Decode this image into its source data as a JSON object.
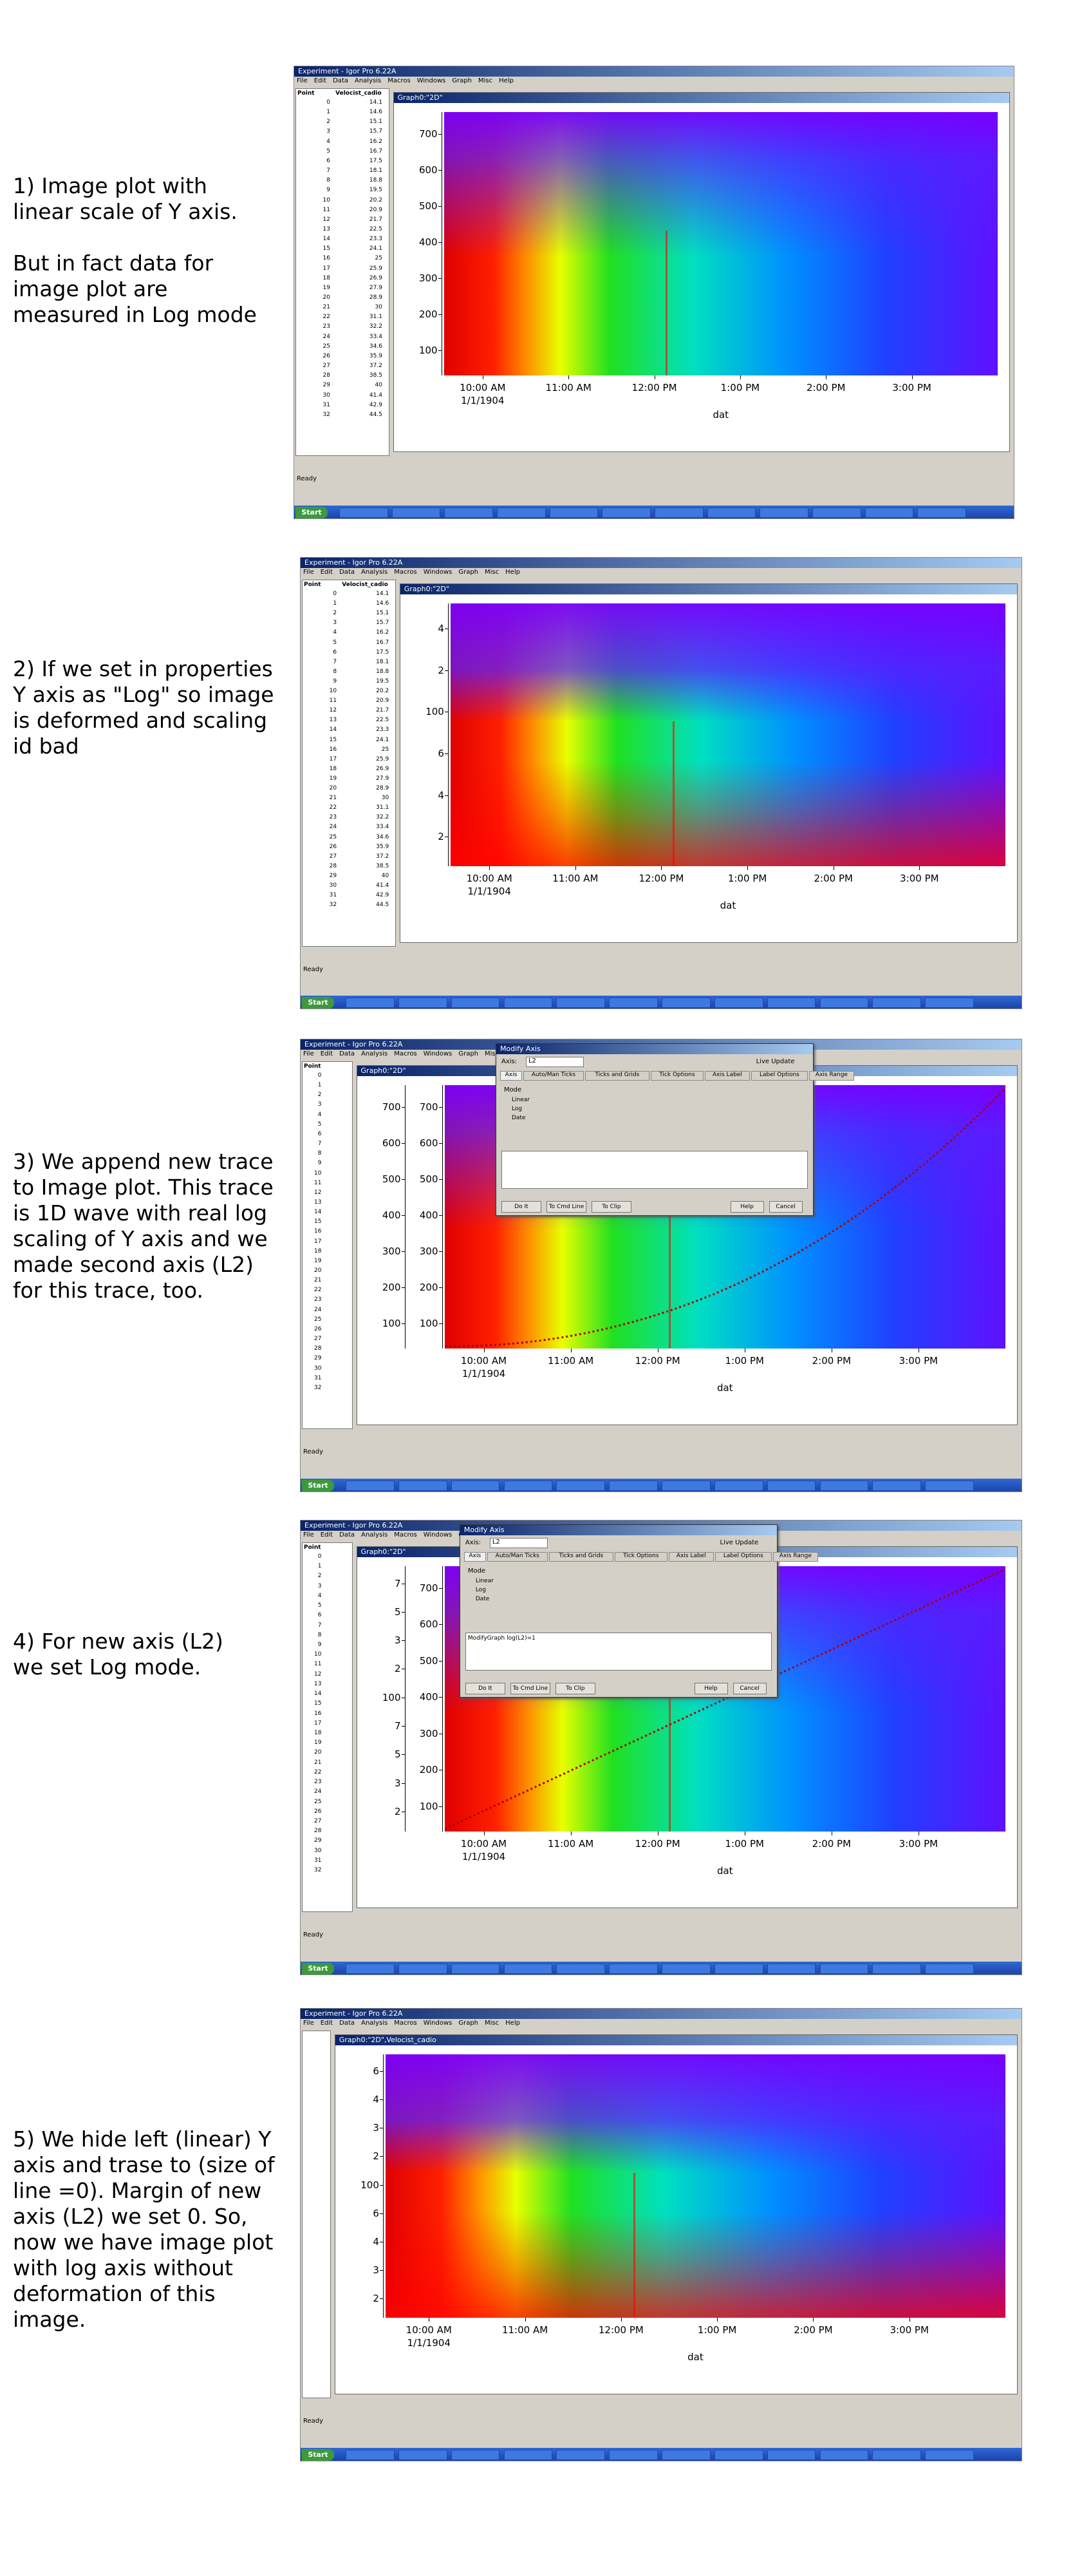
{
  "window_title": "Experiment - Igor Pro 6.22A",
  "menu": [
    "File",
    "Edit",
    "Data",
    "Analysis",
    "Macros",
    "Windows",
    "Graph",
    "Misc",
    "Help"
  ],
  "table": {
    "columns": [
      "Point",
      "Velocist_cadio"
    ],
    "points": [
      "0",
      "1",
      "2",
      "3",
      "4",
      "5",
      "6",
      "7",
      "8",
      "9",
      "10",
      "11",
      "12",
      "13",
      "14",
      "15",
      "16",
      "17",
      "18",
      "19",
      "20",
      "21",
      "22",
      "23",
      "24",
      "25",
      "26",
      "27",
      "28",
      "29",
      "30",
      "31",
      "32"
    ],
    "values": [
      "14.1",
      "14.6",
      "15.1",
      "15.7",
      "16.2",
      "16.7",
      "17.5",
      "18.1",
      "18.8",
      "19.5",
      "20.2",
      "20.9",
      "21.7",
      "22.5",
      "23.3",
      "24.1",
      "25",
      "25.9",
      "26.9",
      "27.9",
      "28.9",
      "30",
      "31.1",
      "32.2",
      "33.4",
      "34.6",
      "35.9",
      "37.2",
      "38.5",
      "40",
      "41.4",
      "42.9",
      "44.5"
    ]
  },
  "x_ticks": [
    "10:00 AM",
    "11:00 AM",
    "12:00 PM",
    "1:00 PM",
    "2:00 PM",
    "3:00 PM"
  ],
  "x_sublabel": "1/1/1904",
  "x_label": "dat",
  "taskbar": {
    "start": "Start",
    "status": "Ready"
  },
  "dialog": {
    "title": "Modify Axis",
    "axis_label": "Axis:",
    "axis": "L2",
    "live": "Live Update",
    "tabs": [
      "Axis",
      "Auto/Man Ticks",
      "Ticks and Grids",
      "Tick Options",
      "Axis Label",
      "Label Options",
      "Axis Range"
    ],
    "mode_label": "Mode",
    "modes": [
      "Linear",
      "Log",
      "Date"
    ],
    "buttons": [
      "Do It",
      "To Cmd Line",
      "To Clip",
      "Help",
      "Cancel"
    ],
    "command": "ModifyGraph log(L2)=1"
  },
  "steps": [
    {
      "caption": [
        "1) Image plot with",
        "linear scale of Y axis.",
        "",
        "But in fact data for",
        "image plot are",
        "measured in Log mode"
      ],
      "graph_title": "Graph0:\"2D\"",
      "table": true,
      "dialog": false,
      "trace": false,
      "log": false,
      "axes": [
        [
          "700",
          "600",
          "500",
          "400",
          "300",
          "200",
          "100"
        ]
      ]
    },
    {
      "caption": [
        "2) If we set in properties",
        "Y axis as \"Log\" so image",
        "is deformed and scaling",
        "id bad"
      ],
      "graph_title": "Graph0:\"2D\"",
      "table": true,
      "dialog": false,
      "trace": false,
      "log": true,
      "axes": [
        [
          "4",
          "2",
          "100",
          "6",
          "4",
          "2"
        ]
      ]
    },
    {
      "caption": [
        "3) We append new trace",
        "to Image plot. This trace",
        "is 1D wave with real log",
        "scaling of Y axis and we",
        "made second axis (L2)",
        "for this trace, too."
      ],
      "graph_title": "Graph0:\"2D\"",
      "table": true,
      "dialog": true,
      "trace": true,
      "log": false,
      "axes": [
        [
          "700",
          "600",
          "500",
          "400",
          "300",
          "200",
          "100"
        ],
        [
          "700",
          "600",
          "500",
          "400",
          "300",
          "200",
          "100"
        ]
      ]
    },
    {
      "caption": [
        "4) For new axis (L2)",
        "we set Log mode."
      ],
      "graph_title": "Graph0:\"2D\"",
      "table": true,
      "dialog": true,
      "trace": true,
      "log": false,
      "axes": [
        [
          "7",
          "5",
          "3",
          "2",
          "100",
          "7",
          "5",
          "3",
          "2"
        ],
        [
          "700",
          "600",
          "500",
          "400",
          "300",
          "200",
          "100"
        ]
      ]
    },
    {
      "caption": [
        "5) We hide left (linear) Y",
        "axis and trase to (size of",
        "line =0). Margin of new",
        "axis (L2) we set 0. So,",
        "now we have image plot",
        "with log axis without",
        "deformation of this",
        "image."
      ],
      "graph_title": "Graph0:\"2D\",Velocist_cadio",
      "table": false,
      "dialog": false,
      "trace": false,
      "log": true,
      "axes": [
        [
          "6",
          "4",
          "3",
          "2",
          "100",
          "6",
          "4",
          "3",
          "2"
        ]
      ]
    }
  ]
}
